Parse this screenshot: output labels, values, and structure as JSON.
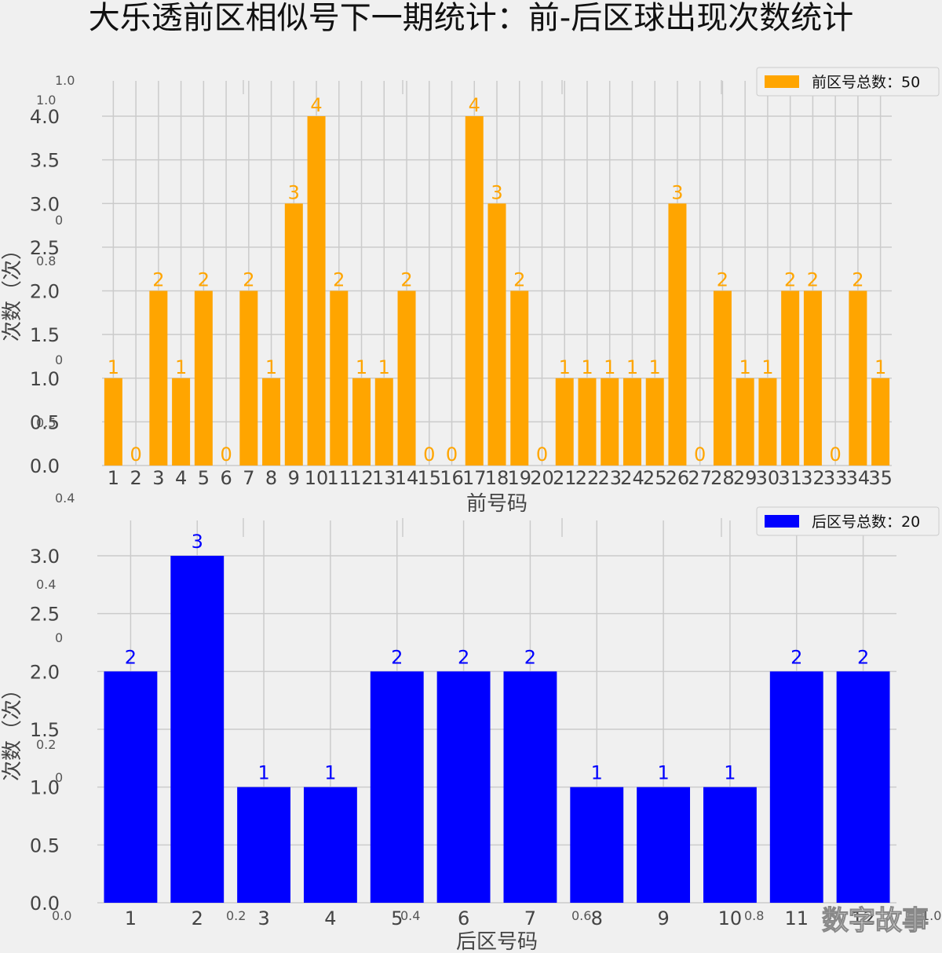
{
  "title": "大乐透前区相似号下一期统计：前-后区球出现次数统计",
  "watermark": "数字故事",
  "colors": {
    "front": "#ffa500",
    "back": "#0000ff",
    "grid": "#cbcbcb",
    "bg": "#f0f0f0"
  },
  "chart_data": [
    {
      "type": "bar",
      "xlabel": "前号码",
      "ylabel": "次数（次）",
      "legend": "前区号总数：50",
      "legend_position": "top-right",
      "grid": true,
      "ylim": [
        0,
        4
      ],
      "yticks": [
        "0.0",
        "0.5",
        "1.0",
        "1.5",
        "2.0",
        "2.5",
        "3.0",
        "3.5",
        "4.0"
      ],
      "categories": [
        "1",
        "2",
        "3",
        "4",
        "5",
        "6",
        "7",
        "8",
        "9",
        "10",
        "11",
        "12",
        "13",
        "14",
        "15",
        "16",
        "17",
        "18",
        "19",
        "20",
        "21",
        "22",
        "23",
        "24",
        "25",
        "26",
        "27",
        "28",
        "29",
        "30",
        "31",
        "32",
        "33",
        "34",
        "35"
      ],
      "values": [
        1,
        0,
        2,
        1,
        2,
        0,
        2,
        1,
        3,
        4,
        2,
        1,
        1,
        2,
        0,
        0,
        4,
        3,
        2,
        0,
        1,
        1,
        1,
        1,
        1,
        3,
        0,
        2,
        1,
        1,
        2,
        2,
        0,
        2,
        1
      ],
      "ghost_ticks": [
        "1.0",
        "1.0",
        "0",
        "0.8",
        "0",
        "0.5",
        "0.4"
      ]
    },
    {
      "type": "bar",
      "xlabel": "后区号码",
      "ylabel": "次数（次）",
      "legend": "后区号总数：20",
      "legend_position": "top-right",
      "grid": true,
      "ylim": [
        0,
        3
      ],
      "yticks": [
        "0.0",
        "0.5",
        "1.0",
        "1.5",
        "2.0",
        "2.5",
        "3.0"
      ],
      "categories": [
        "1",
        "2",
        "3",
        "4",
        "5",
        "6",
        "7",
        "8",
        "9",
        "10",
        "11",
        "12"
      ],
      "values": [
        2,
        3,
        1,
        1,
        2,
        2,
        2,
        1,
        1,
        1,
        2,
        2
      ],
      "ghost_ticks": [
        "0.4",
        "0",
        "0.2",
        "0",
        "0.0",
        "0.2",
        "0.4",
        "0.6",
        "0.8",
        "1.0"
      ]
    }
  ]
}
